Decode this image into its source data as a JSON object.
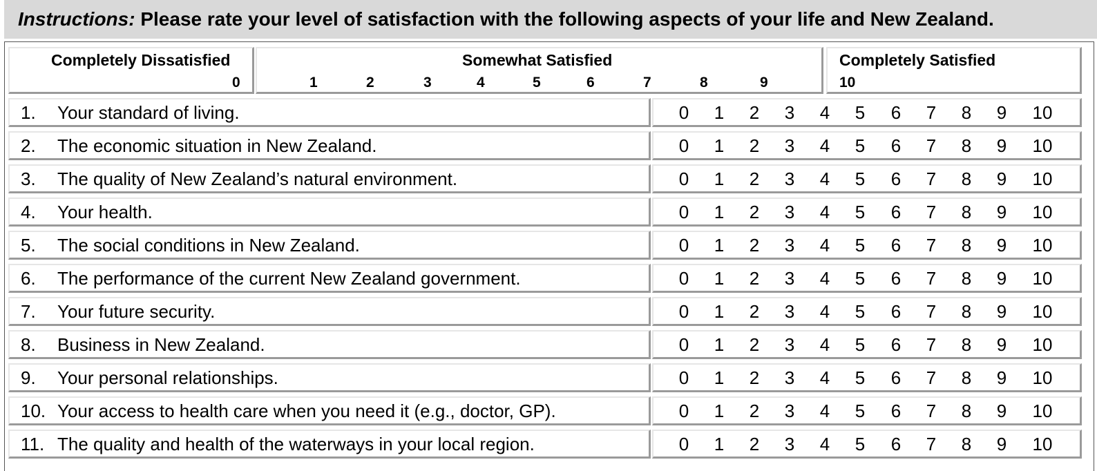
{
  "instructions": {
    "label": "Instructions:",
    "text": " Please rate your level of satisfaction with the following aspects of your life and New Zealand."
  },
  "scale_header": {
    "left": {
      "title": "Completely Dissatisfied",
      "number": "0"
    },
    "middle": {
      "title": "Somewhat Satisfied",
      "numbers": [
        "1",
        "2",
        "3",
        "4",
        "5",
        "6",
        "7",
        "8",
        "9"
      ]
    },
    "right": {
      "title": "Completely Satisfied",
      "number": "10"
    }
  },
  "scale_options": [
    "0",
    "1",
    "2",
    "3",
    "4",
    "5",
    "6",
    "7",
    "8",
    "9",
    "10"
  ],
  "questions": [
    {
      "number": "1.",
      "text": "Your standard of living."
    },
    {
      "number": "2.",
      "text": "The economic situation in New Zealand."
    },
    {
      "number": "3.",
      "text": "The quality of New Zealand’s natural environment."
    },
    {
      "number": "4.",
      "text": "Your health."
    },
    {
      "number": "5.",
      "text": "The social conditions in New Zealand."
    },
    {
      "number": "6.",
      "text": "The performance of the current New Zealand government."
    },
    {
      "number": "7.",
      "text": "Your future security."
    },
    {
      "number": "8.",
      "text": "Business in New Zealand."
    },
    {
      "number": "9.",
      "text": "Your personal relationships."
    },
    {
      "number": "10.",
      "text": "Your access to health care when you need it (e.g., doctor, GP)."
    },
    {
      "number": "11.",
      "text": "The quality and health of the waterways in your local region."
    }
  ]
}
